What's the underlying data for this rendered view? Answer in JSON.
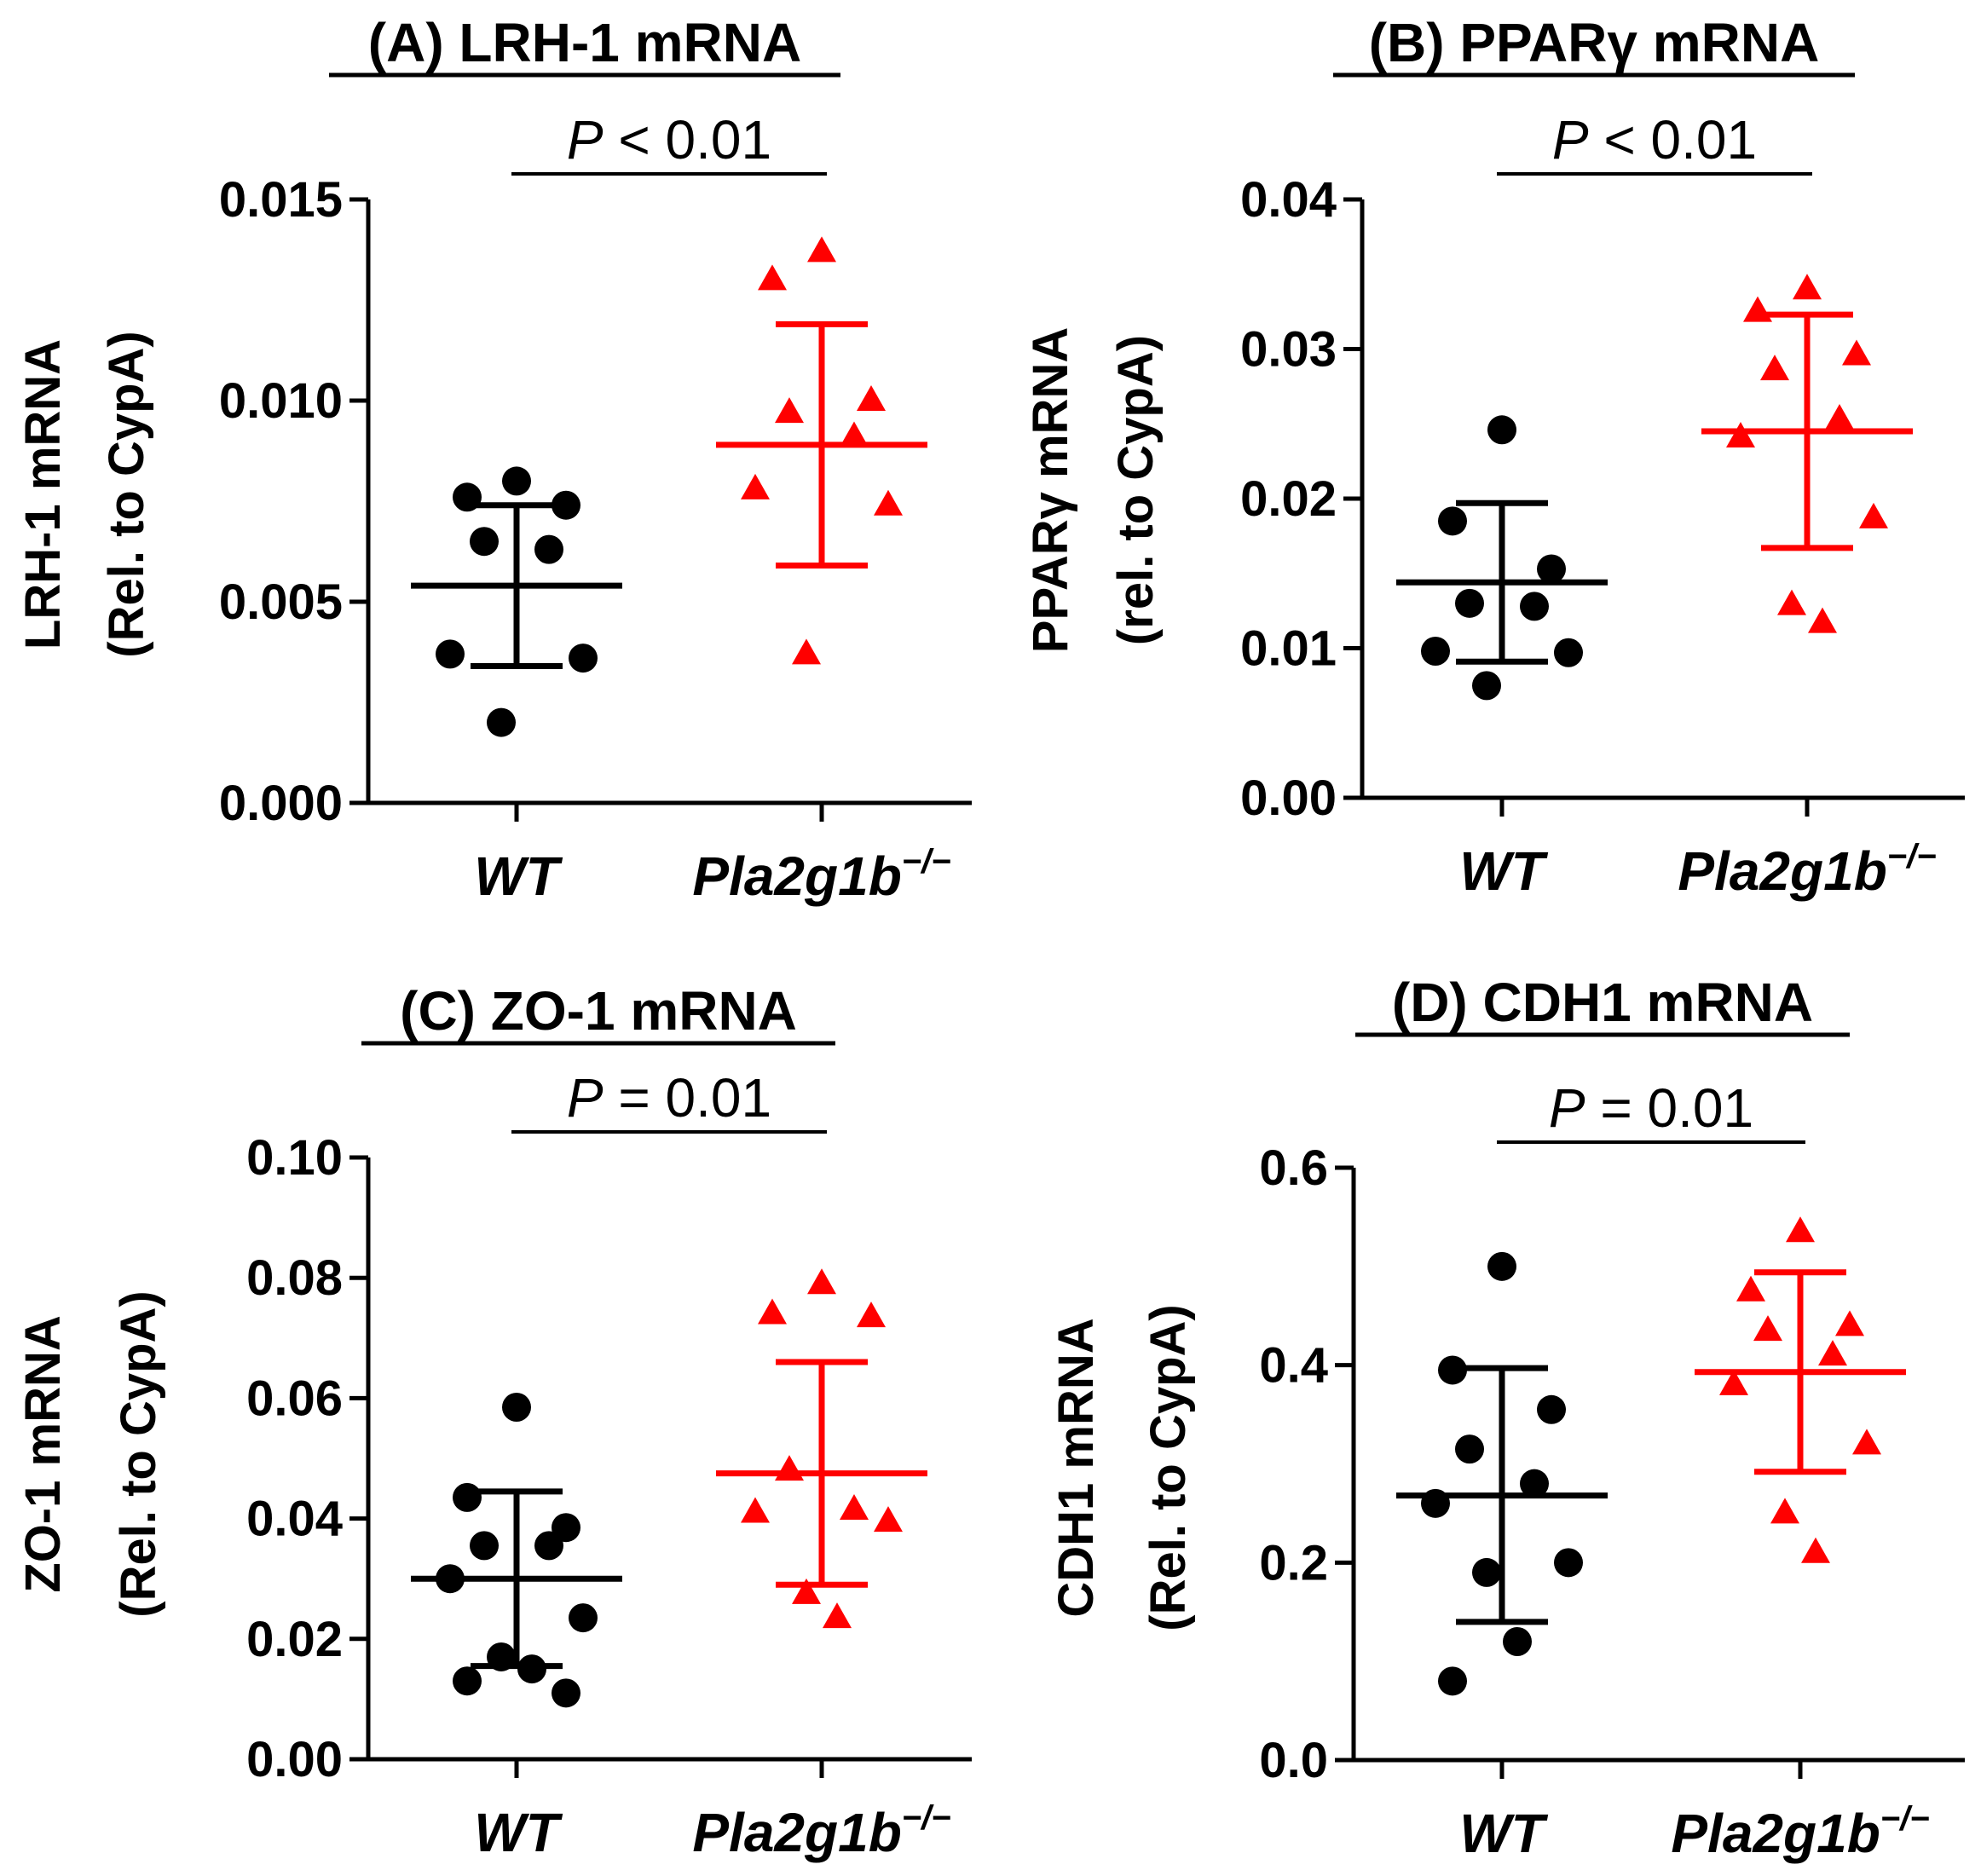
{
  "chart_data": [
    {
      "type": "scatter",
      "title": "(A) LRH-1 mRNA",
      "ylabel_line1": "LRH-1 mRNA",
      "ylabel_line2": "(Rel. to CypA)",
      "ylim": [
        0,
        0.015
      ],
      "yticks": [
        0.0,
        0.005,
        0.01,
        0.015
      ],
      "ytick_labels": [
        "0.000",
        "0.005",
        "0.010",
        "0.015"
      ],
      "categories": [
        "WT",
        "Pla2g1b"
      ],
      "category_superscript": [
        "",
        "−/−"
      ],
      "pvalue": {
        "symbol": "P",
        "text": " < 0.01"
      },
      "series": [
        {
          "color": "#000000",
          "marker": "circle",
          "values": [
            0.008,
            0.0076,
            0.0074,
            0.0065,
            0.0063,
            0.0037,
            0.0036,
            0.002
          ],
          "mean": 0.0054,
          "err_low": 0.0034,
          "err_high": 0.0074
        },
        {
          "color": "#ff0000",
          "marker": "triangle",
          "values": [
            0.0137,
            0.013,
            0.01,
            0.0097,
            0.0091,
            0.0078,
            0.0074,
            0.0037
          ],
          "mean": 0.0089,
          "err_low": 0.0059,
          "err_high": 0.0119
        }
      ]
    },
    {
      "type": "scatter",
      "title": "(B) PPARγ mRNA",
      "ylabel_line1": "PPARγ mRNA",
      "ylabel_line2": "(rel. to CypA)",
      "ylim": [
        0,
        0.04
      ],
      "yticks": [
        0.0,
        0.01,
        0.02,
        0.03,
        0.04
      ],
      "ytick_labels": [
        "0.00",
        "0.01",
        "0.02",
        "0.03",
        "0.04"
      ],
      "categories": [
        "WT",
        "Pla2g1b"
      ],
      "category_superscript": [
        "",
        "−/−"
      ],
      "pvalue": {
        "symbol": "P",
        "text": " < 0.01"
      },
      "series": [
        {
          "color": "#000000",
          "marker": "circle",
          "values": [
            0.0246,
            0.0185,
            0.0153,
            0.013,
            0.0128,
            0.0098,
            0.0097,
            0.0075
          ],
          "mean": 0.0144,
          "err_low": 0.0091,
          "err_high": 0.0197
        },
        {
          "color": "#ff0000",
          "marker": "triangle",
          "values": [
            0.034,
            0.0325,
            0.0296,
            0.0286,
            0.0253,
            0.0241,
            0.0187,
            0.0129,
            0.0117
          ],
          "mean": 0.0245,
          "err_low": 0.0167,
          "err_high": 0.0323
        }
      ]
    },
    {
      "type": "scatter",
      "title": "(C) ZO-1 mRNA",
      "ylabel_line1": "ZO-1 mRNA",
      "ylabel_line2": "(Rel. to CypA)",
      "ylim": [
        0,
        0.1
      ],
      "yticks": [
        0.0,
        0.02,
        0.04,
        0.06,
        0.08,
        0.1
      ],
      "ytick_labels": [
        "0.00",
        "0.02",
        "0.04",
        "0.06",
        "0.08",
        "0.10"
      ],
      "categories": [
        "WT",
        "Pla2g1b"
      ],
      "category_superscript": [
        "",
        "−/−"
      ],
      "pvalue": {
        "symbol": "P",
        "text": " = 0.01"
      },
      "series": [
        {
          "color": "#000000",
          "marker": "circle",
          "values": [
            0.0585,
            0.0435,
            0.0385,
            0.0355,
            0.0355,
            0.03,
            0.0235,
            0.017,
            0.015,
            0.013,
            0.011
          ],
          "mean": 0.03,
          "err_low": 0.0155,
          "err_high": 0.0445
        },
        {
          "color": "#ff0000",
          "marker": "triangle",
          "values": [
            0.079,
            0.074,
            0.0735,
            0.048,
            0.0415,
            0.041,
            0.0395,
            0.0275,
            0.0235
          ],
          "mean": 0.0475,
          "err_low": 0.029,
          "err_high": 0.066
        }
      ]
    },
    {
      "type": "scatter",
      "title": "(D) CDH1 mRNA",
      "ylabel_line1": "CDH1 mRNA",
      "ylabel_line2": "(Rel. to CypA)",
      "ylim": [
        0,
        0.6
      ],
      "yticks": [
        0.0,
        0.2,
        0.4,
        0.6
      ],
      "ytick_labels": [
        "0.0",
        "0.2",
        "0.4",
        "0.6"
      ],
      "categories": [
        "WT",
        "Pla2g1b"
      ],
      "category_superscript": [
        "",
        "−/−"
      ],
      "pvalue": {
        "symbol": "P",
        "text": " = 0.01"
      },
      "series": [
        {
          "color": "#000000",
          "marker": "circle",
          "values": [
            0.5,
            0.395,
            0.355,
            0.315,
            0.28,
            0.26,
            0.2,
            0.19,
            0.12,
            0.08
          ],
          "mean": 0.268,
          "err_low": 0.14,
          "err_high": 0.397
        },
        {
          "color": "#ff0000",
          "marker": "triangle",
          "values": [
            0.535,
            0.475,
            0.44,
            0.435,
            0.41,
            0.38,
            0.32,
            0.25,
            0.21
          ],
          "mean": 0.393,
          "err_low": 0.292,
          "err_high": 0.494
        }
      ]
    }
  ]
}
